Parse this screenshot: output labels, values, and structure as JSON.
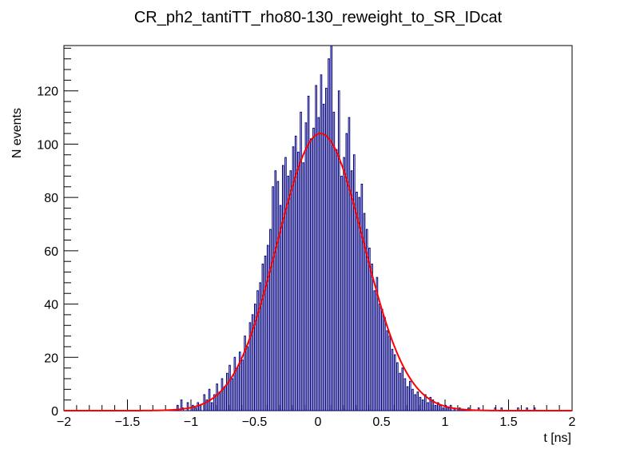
{
  "chart_data": {
    "type": "histogram",
    "title": "CR_ph2_tantiTT_rho80-130_reweight_to_SR_IDcat",
    "xlabel": "t [ns]",
    "ylabel": "N events",
    "xlim": [
      -2,
      2
    ],
    "ylim": [
      0,
      137
    ],
    "xticks": [
      -2,
      -1.5,
      -1,
      -0.5,
      0,
      0.5,
      1,
      1.5,
      2
    ],
    "xtick_labels": [
      "−2",
      "−1.5",
      "−1",
      "−0.5",
      "0",
      "0.5",
      "1",
      "1.5",
      "2"
    ],
    "yticks": [
      0,
      20,
      40,
      60,
      80,
      100,
      120
    ],
    "ytick_labels": [
      "0",
      "20",
      "40",
      "60",
      "80",
      "100",
      "120"
    ],
    "bin_width": 0.01,
    "histogram_color": "#00007f",
    "fit": {
      "function": "gaussian",
      "amplitude": 104,
      "mean": 0.02,
      "sigma": 0.34,
      "color": "#ff0000"
    },
    "series": [
      {
        "name": "histogram",
        "bin_centers": [
          -1.105,
          -1.075,
          -1.065,
          -1.025,
          -0.985,
          -0.965,
          -0.945,
          -0.925,
          -0.895,
          -0.875,
          -0.855,
          -0.835,
          -0.815,
          -0.795,
          -0.775,
          -0.755,
          -0.735,
          -0.715,
          -0.695,
          -0.675,
          -0.655,
          -0.635,
          -0.615,
          -0.595,
          -0.575,
          -0.555,
          -0.535,
          -0.515,
          -0.495,
          -0.475,
          -0.455,
          -0.435,
          -0.415,
          -0.395,
          -0.375,
          -0.355,
          -0.335,
          -0.315,
          -0.295,
          -0.275,
          -0.255,
          -0.235,
          -0.215,
          -0.195,
          -0.175,
          -0.155,
          -0.135,
          -0.115,
          -0.095,
          -0.075,
          -0.055,
          -0.035,
          -0.015,
          0.005,
          0.025,
          0.045,
          0.065,
          0.085,
          0.105,
          0.125,
          0.145,
          0.165,
          0.185,
          0.205,
          0.225,
          0.245,
          0.265,
          0.285,
          0.305,
          0.325,
          0.345,
          0.365,
          0.385,
          0.405,
          0.425,
          0.445,
          0.465,
          0.485,
          0.505,
          0.525,
          0.545,
          0.565,
          0.585,
          0.605,
          0.625,
          0.645,
          0.665,
          0.685,
          0.705,
          0.725,
          0.745,
          0.765,
          0.785,
          0.805,
          0.825,
          0.845,
          0.865,
          0.885,
          0.905,
          0.925,
          0.945,
          0.965,
          0.985,
          1.005,
          1.025,
          1.045,
          1.075,
          1.115,
          1.185,
          1.265,
          1.395,
          1.445,
          1.575,
          1.645,
          1.705
        ],
        "counts": [
          2,
          4,
          1,
          3,
          2,
          1,
          3,
          2,
          6,
          4,
          8,
          3,
          6,
          10,
          7,
          12,
          9,
          14,
          17,
          12,
          20,
          16,
          22,
          19,
          28,
          24,
          33,
          36,
          40,
          45,
          48,
          55,
          58,
          62,
          68,
          84,
          90,
          86,
          77,
          92,
          95,
          88,
          90,
          99,
          103,
          97,
          112,
          93,
          108,
          118,
          102,
          106,
          122,
          110,
          126,
          115,
          121,
          132,
          137,
          112,
          98,
          120,
          88,
          95,
          104,
          110,
          90,
          96,
          82,
          80,
          85,
          74,
          68,
          61,
          55,
          45,
          50,
          40,
          38,
          35,
          30,
          28,
          23,
          21,
          18,
          14,
          16,
          12,
          9,
          11,
          8,
          6,
          7,
          5,
          4,
          6,
          3,
          5,
          4,
          2,
          3,
          2,
          1,
          2,
          1,
          2,
          1,
          1,
          1,
          1,
          1,
          1,
          1,
          1,
          1
        ]
      }
    ]
  }
}
